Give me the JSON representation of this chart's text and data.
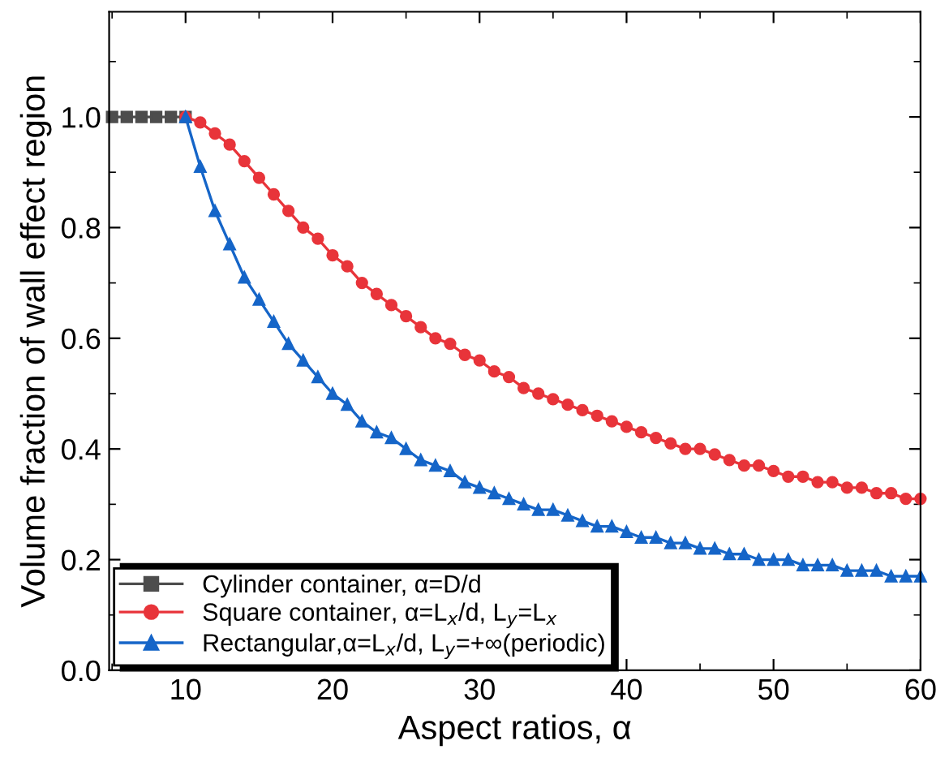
{
  "chart_data": {
    "type": "line",
    "xlabel": "Aspect ratios, α",
    "ylabel": "Volume fraction of wall effect region",
    "xlim": [
      4.8,
      60
    ],
    "ylim": [
      0,
      1.19
    ],
    "xticks": [
      10,
      20,
      30,
      40,
      50,
      60,
      {
        "value": 5,
        "label": null
      },
      {
        "value": 15,
        "label": null
      },
      {
        "value": 25,
        "label": null
      },
      {
        "value": 35,
        "label": null
      },
      {
        "value": 45,
        "label": null
      },
      {
        "value": 55,
        "label": null
      }
    ],
    "yticks": [
      {
        "value": 0,
        "label": "0.0"
      },
      0.2,
      0.4,
      0.6,
      0.8,
      {
        "value": 1,
        "label": "1.0"
      },
      {
        "value": 0.1,
        "label": null
      },
      {
        "value": 0.3,
        "label": null
      },
      {
        "value": 0.5,
        "label": null
      },
      {
        "value": 0.7,
        "label": null
      },
      {
        "value": 0.9,
        "label": null
      },
      {
        "value": 1.1,
        "label": null
      }
    ],
    "grid": false,
    "legend": "bottom left",
    "line_style": "solid",
    "series": [
      {
        "name": "Cylinder container, α=D/d",
        "color": "#4d4d4d",
        "marker": "square",
        "x": [
          5,
          6,
          7,
          8,
          9,
          10
        ],
        "values": [
          1.0,
          1.0,
          1.0,
          1.0,
          1.0,
          1.0
        ]
      },
      {
        "name": "Square container, α=L$_{x}$/d, L$_{y}$=L$_{x}$",
        "color": "#e8343a",
        "marker": "circle",
        "x": [
          10,
          11,
          12,
          13,
          14,
          15,
          16,
          17,
          18,
          19,
          20,
          21,
          22,
          23,
          24,
          25,
          26,
          27,
          28,
          29,
          30,
          31,
          32,
          33,
          34,
          35,
          36,
          37,
          38,
          39,
          40,
          41,
          42,
          43,
          44,
          45,
          46,
          47,
          48,
          49,
          50,
          51,
          52,
          53,
          54,
          55,
          56,
          57,
          58,
          59,
          60
        ],
        "values": [
          1.0,
          0.99,
          0.97,
          0.95,
          0.92,
          0.89,
          0.86,
          0.83,
          0.8,
          0.78,
          0.75,
          0.73,
          0.7,
          0.68,
          0.66,
          0.64,
          0.62,
          0.6,
          0.59,
          0.57,
          0.56,
          0.54,
          0.53,
          0.51,
          0.5,
          0.49,
          0.48,
          0.47,
          0.46,
          0.45,
          0.44,
          0.43,
          0.42,
          0.41,
          0.4,
          0.4,
          0.39,
          0.38,
          0.37,
          0.37,
          0.36,
          0.35,
          0.35,
          0.34,
          0.34,
          0.33,
          0.33,
          0.32,
          0.32,
          0.31,
          0.31
        ]
      },
      {
        "name": "Rectangular,α=L$_{x}$/d, L$_{y}$=+∞(periodic)",
        "color": "#1565c8",
        "marker": "triangle",
        "x": [
          10,
          11,
          12,
          13,
          14,
          15,
          16,
          17,
          18,
          19,
          20,
          21,
          22,
          23,
          24,
          25,
          26,
          27,
          28,
          29,
          30,
          31,
          32,
          33,
          34,
          35,
          36,
          37,
          38,
          39,
          40,
          41,
          42,
          43,
          44,
          45,
          46,
          47,
          48,
          49,
          50,
          51,
          52,
          53,
          54,
          55,
          56,
          57,
          58,
          59,
          60
        ],
        "values": [
          1.0,
          0.91,
          0.83,
          0.77,
          0.71,
          0.67,
          0.63,
          0.59,
          0.56,
          0.53,
          0.5,
          0.48,
          0.45,
          0.43,
          0.42,
          0.4,
          0.38,
          0.37,
          0.36,
          0.34,
          0.33,
          0.32,
          0.31,
          0.3,
          0.29,
          0.29,
          0.28,
          0.27,
          0.26,
          0.26,
          0.25,
          0.24,
          0.24,
          0.23,
          0.23,
          0.22,
          0.22,
          0.21,
          0.21,
          0.2,
          0.2,
          0.2,
          0.19,
          0.19,
          0.19,
          0.18,
          0.18,
          0.18,
          0.17,
          0.17,
          0.17
        ]
      }
    ]
  }
}
